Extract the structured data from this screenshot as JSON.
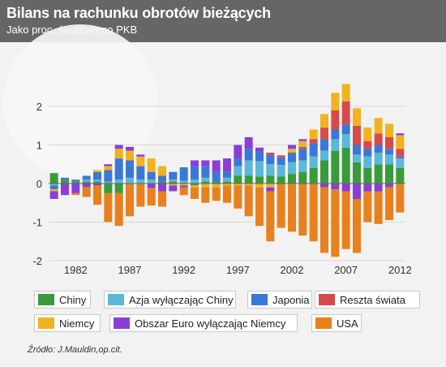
{
  "header": {
    "title": "Bilans na rachunku obrotów bieżących",
    "subtitle": "Jako proc. światowego PKB"
  },
  "source": "Źródło: J.Mauldin,op.cit.",
  "colors": {
    "header_bg": "#666666",
    "Chiny": "#3a9a3a",
    "Azja": "#5ab8d8",
    "Japonia": "#3a78d8",
    "Reszta": "#d84a4a",
    "Niemcy": "#f2b21e",
    "EuroExDE": "#8a3ed8",
    "USA": "#e8801e"
  },
  "legend": [
    {
      "label": "Chiny",
      "color": "#3a9a3a"
    },
    {
      "label": "Azja wyłączając Chiny",
      "color": "#5ab8d8"
    },
    {
      "label": "Japonia",
      "color": "#3a78d8"
    },
    {
      "label": "Reszta świata",
      "color": "#d84a4a"
    },
    {
      "label": "Niemcy",
      "color": "#f2b21e"
    },
    {
      "label": "Obszar Euro wyłączając Niemcy",
      "color": "#8a3ed8"
    },
    {
      "label": "USA",
      "color": "#e8801e"
    }
  ],
  "chart_data": {
    "type": "bar",
    "stacked": true,
    "title": "Bilans na rachunku obrotów bieżących",
    "subtitle": "Jako proc. światowego PKB",
    "x_tick_labels": [
      "1982",
      "1987",
      "1992",
      "1997",
      "2002",
      "2007",
      "2012"
    ],
    "y_tick_labels": [
      "2",
      "1",
      "0",
      "-1",
      "-2"
    ],
    "ylim": [
      -2.1,
      2.45
    ],
    "x": [
      1980,
      1981,
      1982,
      1983,
      1984,
      1985,
      1986,
      1987,
      1988,
      1989,
      1990,
      1991,
      1992,
      1993,
      1994,
      1995,
      1996,
      1997,
      1998,
      1999,
      2000,
      2001,
      2002,
      2003,
      2004,
      2005,
      2006,
      2007,
      2008,
      2009,
      2010,
      2011,
      2012
    ],
    "series": [
      {
        "name": "Chiny",
        "values": [
          0.27,
          0.1,
          0.05,
          0.05,
          0.05,
          -0.25,
          -0.25,
          0.0,
          0.0,
          -0.02,
          0.05,
          0.05,
          0.02,
          -0.05,
          0.05,
          0.05,
          0.05,
          0.2,
          0.2,
          0.18,
          0.2,
          0.18,
          0.25,
          0.3,
          0.4,
          0.6,
          0.85,
          0.93,
          0.55,
          0.4,
          0.5,
          0.5,
          0.4
        ]
      },
      {
        "name": "Azja wyłączając Chiny",
        "values": [
          -0.05,
          0.0,
          0.0,
          0.05,
          0.05,
          0.05,
          0.1,
          0.15,
          0.1,
          0.1,
          0.0,
          0.05,
          0.05,
          0.1,
          0.1,
          0.0,
          0.1,
          0.25,
          0.4,
          0.4,
          0.3,
          0.3,
          0.3,
          0.3,
          0.3,
          0.25,
          0.3,
          0.35,
          0.2,
          0.3,
          0.3,
          0.25,
          0.25
        ]
      },
      {
        "name": "Japonia",
        "values": [
          -0.1,
          0.05,
          0.05,
          0.1,
          0.2,
          0.3,
          0.55,
          0.45,
          0.35,
          0.2,
          0.15,
          0.2,
          0.35,
          0.35,
          0.3,
          0.25,
          0.15,
          0.2,
          0.3,
          0.25,
          0.25,
          0.2,
          0.25,
          0.3,
          0.35,
          0.3,
          0.25,
          0.25,
          0.25,
          0.2,
          0.2,
          0.15,
          0.05
        ]
      },
      {
        "name": "Reszta świata",
        "values": [
          0.0,
          0.0,
          0.0,
          0.0,
          0.0,
          0.0,
          0.0,
          0.0,
          0.0,
          0.0,
          0.0,
          0.0,
          0.0,
          0.0,
          0.0,
          0.0,
          0.0,
          0.0,
          0.0,
          0.0,
          0.05,
          0.05,
          0.0,
          0.05,
          0.1,
          0.3,
          0.5,
          0.6,
          0.5,
          0.2,
          0.3,
          0.3,
          0.2
        ]
      },
      {
        "name": "Niemcy",
        "values": [
          -0.05,
          0.0,
          0.0,
          0.0,
          0.05,
          0.1,
          0.25,
          0.25,
          0.25,
          0.35,
          0.25,
          -0.05,
          -0.05,
          -0.05,
          -0.1,
          -0.1,
          -0.05,
          -0.05,
          -0.05,
          -0.1,
          -0.1,
          0.0,
          0.1,
          0.15,
          0.25,
          0.35,
          0.45,
          0.45,
          0.45,
          0.35,
          0.4,
          0.35,
          0.35
        ]
      },
      {
        "name": "Obszar Euro wyłączając Niemcy",
        "values": [
          -0.2,
          -0.3,
          -0.25,
          -0.1,
          -0.05,
          0.05,
          0.1,
          0.1,
          0.05,
          -0.1,
          -0.2,
          -0.15,
          -0.05,
          0.15,
          0.15,
          0.3,
          0.35,
          0.35,
          0.3,
          0.1,
          -0.1,
          0.0,
          0.1,
          0.05,
          0.0,
          -0.1,
          -0.15,
          -0.2,
          -0.4,
          -0.2,
          -0.2,
          -0.1,
          0.05
        ]
      },
      {
        "name": "USA",
        "values": [
          0.0,
          0.0,
          -0.05,
          -0.25,
          -0.5,
          -0.75,
          -0.85,
          -0.85,
          -0.6,
          -0.45,
          -0.4,
          0.0,
          -0.2,
          -0.3,
          -0.4,
          -0.35,
          -0.45,
          -0.6,
          -0.8,
          -1.0,
          -1.3,
          -1.15,
          -1.25,
          -1.35,
          -1.5,
          -1.7,
          -1.75,
          -1.5,
          -1.4,
          -0.8,
          -0.85,
          -0.85,
          -0.75
        ]
      }
    ]
  }
}
